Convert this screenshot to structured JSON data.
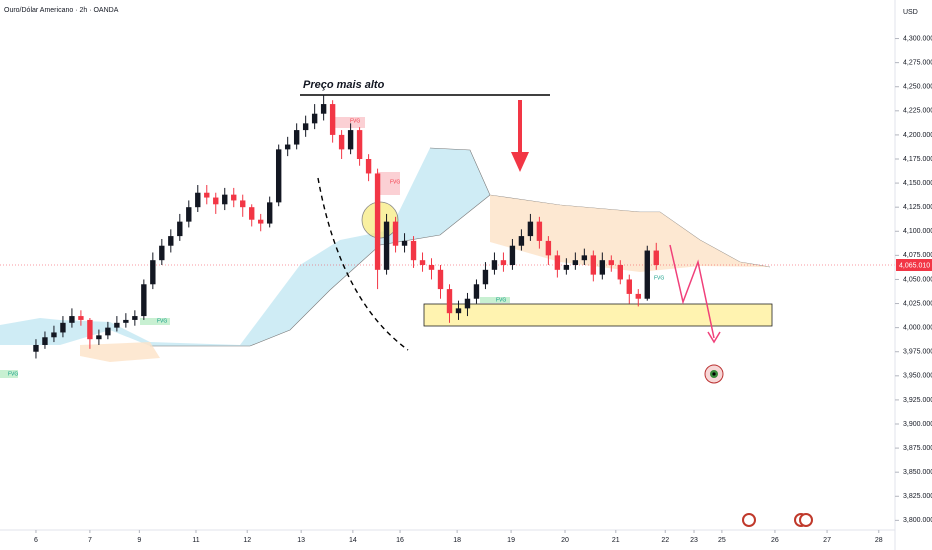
{
  "chart_data": {
    "type": "candlestick",
    "title": "Ouro/Dólar Americano · 2h · OANDA",
    "currency": "USD",
    "annotation": "Preço mais alto",
    "fvg_labels": [
      "FVG",
      "FVG",
      "FVG",
      "FVG",
      "FVG",
      "FVG"
    ],
    "last_price_label": "4,065.010",
    "up_color": "#131722",
    "down_color": "#f23645",
    "x": [
      0,
      2,
      4,
      6,
      8,
      10,
      12,
      14,
      16,
      18,
      20,
      22,
      24,
      26,
      28,
      30,
      32,
      34,
      36,
      38,
      40,
      42,
      44,
      46,
      48,
      50,
      52,
      54,
      56,
      58,
      60,
      62,
      64,
      66,
      68,
      70,
      72,
      74,
      76,
      78,
      80,
      82,
      84,
      86,
      88,
      90,
      92,
      94,
      96,
      98,
      100,
      102,
      104,
      106,
      108,
      110,
      112,
      114,
      116,
      118,
      120,
      122,
      124,
      126,
      128,
      130,
      132,
      134,
      136,
      138
    ],
    "open": [
      3975,
      3982,
      3990,
      3995,
      4005,
      4012,
      4008,
      3988,
      3992,
      4000,
      4005,
      4008,
      4012,
      4045,
      4070,
      4085,
      4095,
      4110,
      4125,
      4140,
      4135,
      4128,
      4138,
      4132,
      4125,
      4112,
      4108,
      4130,
      4185,
      4190,
      4205,
      4212,
      4222,
      4232,
      4200,
      4185,
      4205,
      4175,
      4160,
      4060,
      4110,
      4085,
      4090,
      4070,
      4065,
      4060,
      4040,
      4015,
      4020,
      4030,
      4045,
      4060,
      4070,
      4065,
      4085,
      4095,
      4110,
      4090,
      4075,
      4060,
      4065,
      4070,
      4075,
      4055,
      4070,
      4065,
      4050,
      4035,
      4030,
      4080
    ],
    "high": [
      3988,
      3996,
      4002,
      4012,
      4020,
      4018,
      4010,
      3998,
      4006,
      4012,
      4015,
      4018,
      4050,
      4078,
      4092,
      4102,
      4118,
      4132,
      4148,
      4148,
      4140,
      4145,
      4145,
      4138,
      4128,
      4118,
      4136,
      4190,
      4198,
      4212,
      4220,
      4232,
      4242,
      4236,
      4205,
      4212,
      4208,
      4180,
      4165,
      4118,
      4115,
      4098,
      4095,
      4078,
      4072,
      4065,
      4045,
      4028,
      4036,
      4050,
      4068,
      4078,
      4078,
      4092,
      4102,
      4118,
      4115,
      4095,
      4080,
      4072,
      4078,
      4082,
      4080,
      4078,
      4075,
      4070,
      4055,
      4040,
      4085,
      4088
    ],
    "low": [
      3968,
      3978,
      3985,
      3990,
      4000,
      4002,
      3978,
      3982,
      3988,
      3996,
      4000,
      4002,
      4008,
      4040,
      4065,
      4078,
      4090,
      4104,
      4120,
      4128,
      4118,
      4122,
      4125,
      4115,
      4105,
      4100,
      4104,
      4126,
      4178,
      4185,
      4198,
      4206,
      4215,
      4192,
      4175,
      4180,
      4168,
      4152,
      4040,
      4055,
      4078,
      4078,
      4062,
      4058,
      4050,
      4030,
      4005,
      4008,
      4012,
      4025,
      4040,
      4055,
      4058,
      4060,
      4080,
      4090,
      4082,
      4065,
      4052,
      4055,
      4060,
      4065,
      4048,
      4050,
      4058,
      4045,
      4025,
      4022,
      4028,
      4060
    ],
    "close": [
      3982,
      3990,
      3995,
      4005,
      4012,
      4008,
      3988,
      3992,
      4000,
      4005,
      4008,
      4012,
      4045,
      4070,
      4085,
      4095,
      4110,
      4125,
      4140,
      4135,
      4128,
      4138,
      4132,
      4125,
      4112,
      4108,
      4130,
      4185,
      4190,
      4205,
      4212,
      4222,
      4232,
      4200,
      4185,
      4205,
      4175,
      4160,
      4060,
      4110,
      4085,
      4090,
      4070,
      4065,
      4060,
      4040,
      4015,
      4020,
      4030,
      4045,
      4060,
      4070,
      4065,
      4085,
      4095,
      4110,
      4090,
      4075,
      4060,
      4065,
      4070,
      4075,
      4055,
      4070,
      4065,
      4050,
      4035,
      4030,
      4080,
      4065
    ],
    "xlim": [
      -8,
      190
    ],
    "ylim": [
      3790,
      4340
    ],
    "xticks": [
      {
        "value": 0,
        "label": "6"
      },
      {
        "value": 12,
        "label": "7"
      },
      {
        "value": 23,
        "label": "9"
      },
      {
        "value": 35.6,
        "label": "11"
      },
      {
        "value": 47,
        "label": "12"
      },
      {
        "value": 59,
        "label": "13"
      },
      {
        "value": 70.5,
        "label": "14"
      },
      {
        "value": 81,
        "label": "16"
      },
      {
        "value": 93.7,
        "label": "18"
      },
      {
        "value": 105.7,
        "label": "19"
      },
      {
        "value": 117.7,
        "label": "20"
      },
      {
        "value": 129,
        "label": "21"
      },
      {
        "value": 140,
        "label": "22"
      },
      {
        "value": 146.4,
        "label": "23"
      },
      {
        "value": 152.6,
        "label": "25"
      },
      {
        "value": 164.4,
        "label": "26"
      },
      {
        "value": 176,
        "label": "27"
      },
      {
        "value": 187.5,
        "label": "28"
      }
    ],
    "yticks": [
      {
        "value": 3800,
        "label": "3,800.000"
      },
      {
        "value": 3825,
        "label": "3,825.000"
      },
      {
        "value": 3850,
        "label": "3,850.000"
      },
      {
        "value": 3875,
        "label": "3,875.000"
      },
      {
        "value": 3900,
        "label": "3,900.000"
      },
      {
        "value": 3925,
        "label": "3,925.000"
      },
      {
        "value": 3950,
        "label": "3,950.000"
      },
      {
        "value": 3975,
        "label": "3,975.000"
      },
      {
        "value": 4000,
        "label": "4,000.000"
      },
      {
        "value": 4025,
        "label": "4,025.000"
      },
      {
        "value": 4050,
        "label": "4,050.000"
      },
      {
        "value": 4075,
        "label": "4,075.000"
      },
      {
        "value": 4100,
        "label": "4,100.000"
      },
      {
        "value": 4125,
        "label": "4,125.000"
      },
      {
        "value": 4150,
        "label": "4,150.000"
      },
      {
        "value": 4175,
        "label": "4,175.000"
      },
      {
        "value": 4200,
        "label": "4,200.000"
      },
      {
        "value": 4225,
        "label": "4,225.000"
      },
      {
        "value": 4250,
        "label": "4,250.000"
      },
      {
        "value": 4275,
        "label": "4,275.000"
      },
      {
        "value": 4300,
        "label": "4,300.000"
      }
    ]
  }
}
